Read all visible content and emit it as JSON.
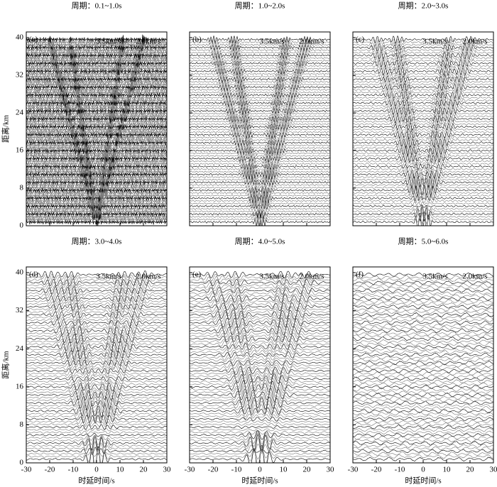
{
  "chart_data": [
    {
      "type": "wiggle",
      "title": "周期：0.1~1.0s",
      "panel_label": "(a)",
      "annotations": [
        "3.5km/s",
        "2.0km/s"
      ],
      "xlim": [
        -30,
        30
      ],
      "xticks": [
        -30,
        -20,
        -10,
        0,
        10,
        20,
        30
      ],
      "xticklabels": false,
      "ylim": [
        0,
        41.2
      ],
      "yticks": [
        0,
        8,
        16,
        24,
        32,
        40
      ],
      "yticklabels": true,
      "ylabel": "距离/km"
    },
    {
      "type": "wiggle",
      "title": "周期：1.0~2.0s",
      "panel_label": "(b)",
      "annotations": [
        "3.5km/s",
        "2.0km/s"
      ],
      "xlim": [
        -30,
        30
      ],
      "xticks": [
        -30,
        -20,
        -10,
        0,
        10,
        20,
        30
      ],
      "xticklabels": false,
      "ylim": [
        0,
        41.2
      ],
      "yticks": [
        0,
        8,
        16,
        24,
        32,
        40
      ],
      "yticklabels": false
    },
    {
      "type": "wiggle",
      "title": "周期：2.0~3.0s",
      "panel_label": "(c)",
      "annotations": [
        "3.5km/s",
        "2.0km/s"
      ],
      "xlim": [
        -30,
        30
      ],
      "xticks": [
        -30,
        -20,
        -10,
        0,
        10,
        20,
        30
      ],
      "xticklabels": false,
      "ylim": [
        0,
        41.2
      ],
      "yticks": [
        0,
        8,
        16,
        24,
        32,
        40
      ],
      "yticklabels": false
    },
    {
      "type": "wiggle",
      "title": "周期：3.0~4.0s",
      "panel_label": "(d)",
      "annotations": [
        "3.5km/s",
        "2.0km/s"
      ],
      "xlim": [
        -30,
        30
      ],
      "xticks": [
        -30,
        -20,
        -10,
        0,
        10,
        20,
        30
      ],
      "xticklabels": true,
      "xlabel": "时延时间/s",
      "ylim": [
        0,
        41.2
      ],
      "yticks": [
        0,
        8,
        16,
        24,
        32,
        40
      ],
      "yticklabels": true,
      "ylabel": "距离/km"
    },
    {
      "type": "wiggle",
      "title": "周期：4.0~5.0s",
      "panel_label": "(e)",
      "annotations": [
        "3.5km/s",
        "2.0km/s"
      ],
      "xlim": [
        -30,
        30
      ],
      "xticks": [
        -30,
        -20,
        -10,
        0,
        10,
        20,
        30
      ],
      "xticklabels": true,
      "xlabel": "时延时间/s",
      "ylim": [
        0,
        41.2
      ],
      "yticks": [
        0,
        8,
        16,
        24,
        32,
        40
      ],
      "yticklabels": false
    },
    {
      "type": "wiggle",
      "title": "周期：5.0~6.0s",
      "panel_label": "(f)",
      "annotations": [
        "3.5km/s",
        "2.0km/s"
      ],
      "xlim": [
        -30,
        30
      ],
      "xticks": [
        -30,
        -20,
        -10,
        0,
        10,
        20,
        30
      ],
      "xticklabels": true,
      "xlabel": "时延时间/s",
      "ylim": [
        0,
        41.2
      ],
      "yticks": [
        0,
        8,
        16,
        24,
        32,
        40
      ],
      "yticklabels": false
    }
  ]
}
